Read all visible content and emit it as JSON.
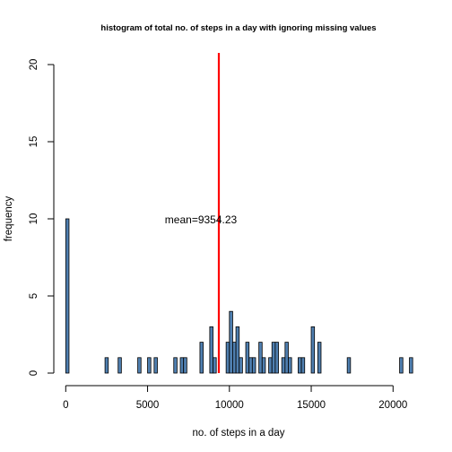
{
  "chart_data": {
    "type": "bar",
    "title": "histogram of total no. of steps in a day with ignoring missing values",
    "xlabel": "no. of steps in a day",
    "ylabel": "frequency",
    "xlim": [
      -400,
      21300
    ],
    "ylim": [
      0,
      20
    ],
    "x_ticks": [
      0,
      5000,
      10000,
      15000,
      20000
    ],
    "y_ticks": [
      0,
      5,
      10,
      15,
      20
    ],
    "bin_width": 200,
    "bins": [
      {
        "x": 0,
        "count": 10
      },
      {
        "x": 2400,
        "count": 1
      },
      {
        "x": 3200,
        "count": 1
      },
      {
        "x": 4400,
        "count": 1
      },
      {
        "x": 5000,
        "count": 1
      },
      {
        "x": 5400,
        "count": 1
      },
      {
        "x": 6600,
        "count": 1
      },
      {
        "x": 7000,
        "count": 1
      },
      {
        "x": 7200,
        "count": 1
      },
      {
        "x": 8200,
        "count": 2
      },
      {
        "x": 8800,
        "count": 3
      },
      {
        "x": 9000,
        "count": 1
      },
      {
        "x": 9800,
        "count": 2
      },
      {
        "x": 10000,
        "count": 4
      },
      {
        "x": 10200,
        "count": 2
      },
      {
        "x": 10400,
        "count": 3
      },
      {
        "x": 10600,
        "count": 1
      },
      {
        "x": 11000,
        "count": 2
      },
      {
        "x": 11200,
        "count": 1
      },
      {
        "x": 11400,
        "count": 1
      },
      {
        "x": 11800,
        "count": 2
      },
      {
        "x": 12000,
        "count": 1
      },
      {
        "x": 12400,
        "count": 1
      },
      {
        "x": 12600,
        "count": 2
      },
      {
        "x": 12800,
        "count": 2
      },
      {
        "x": 13200,
        "count": 1
      },
      {
        "x": 13400,
        "count": 2
      },
      {
        "x": 13600,
        "count": 1
      },
      {
        "x": 14200,
        "count": 1
      },
      {
        "x": 14400,
        "count": 1
      },
      {
        "x": 15000,
        "count": 3
      },
      {
        "x": 15400,
        "count": 2
      },
      {
        "x": 17200,
        "count": 1
      },
      {
        "x": 20400,
        "count": 1
      },
      {
        "x": 21000,
        "count": 1
      }
    ],
    "bar_color": "#4f7fb0",
    "bar_edge_color": "#000000",
    "mean_line": {
      "value": 9354.23,
      "color": "#ff0000",
      "label": "mean=9354.23"
    },
    "grid": false,
    "legend": "none"
  }
}
